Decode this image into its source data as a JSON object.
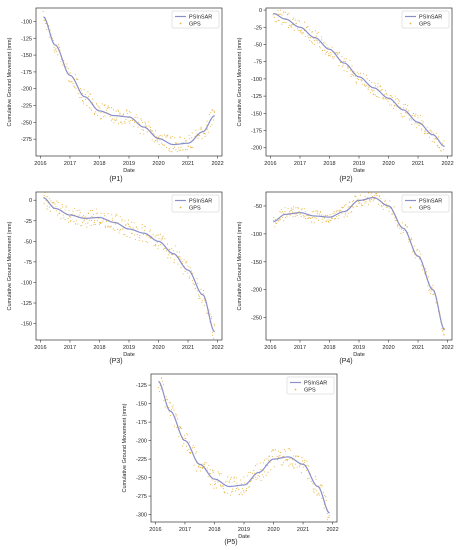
{
  "colors": {
    "psinsar": "#8a8fc8",
    "gps": "#e8b43a",
    "frame": "#333333",
    "text": "#222222"
  },
  "panels": [
    {
      "caption": "(P1)",
      "ylabel": "Cumulative Ground Movement (mm)",
      "xlabel": "Date",
      "legend": [
        "PSInSAR",
        "GPS"
      ],
      "xlim": [
        2015.85,
        2022.15
      ],
      "ylim": [
        -300,
        -80
      ],
      "xticks": [
        2016,
        2017,
        2018,
        2019,
        2020,
        2021,
        2022
      ],
      "xtick_labels": [
        "2016",
        "2017",
        "2018",
        "2019",
        "2020",
        "2021",
        "2022"
      ],
      "yticks": [
        -275,
        -250,
        -225,
        -200,
        -175,
        -150,
        -125,
        -100
      ],
      "ytick_labels": [
        "-275",
        "-250",
        "-225",
        "-200",
        "-175",
        "-150",
        "-125",
        "-100"
      ],
      "curve": [
        [
          2016.1,
          -93
        ],
        [
          2016.5,
          -135
        ],
        [
          2017,
          -180
        ],
        [
          2017.5,
          -212
        ],
        [
          2018,
          -233
        ],
        [
          2018.5,
          -240
        ],
        [
          2019,
          -242
        ],
        [
          2019.5,
          -257
        ],
        [
          2020,
          -274
        ],
        [
          2020.5,
          -283
        ],
        [
          2021,
          -281
        ],
        [
          2021.5,
          -264
        ],
        [
          2021.9,
          -240
        ]
      ],
      "scatter": {
        "spread": 12,
        "count": 280
      }
    },
    {
      "caption": "(P2)",
      "ylabel": "Cumulative Ground Movement (mm)",
      "xlabel": "Date",
      "legend": [
        "PSInSAR",
        "GPS"
      ],
      "xlim": [
        2015.85,
        2022.15
      ],
      "ylim": [
        -212,
        3
      ],
      "xticks": [
        2016,
        2017,
        2018,
        2019,
        2020,
        2021,
        2022
      ],
      "xtick_labels": [
        "2016",
        "2017",
        "2018",
        "2019",
        "2020",
        "2021",
        "2022"
      ],
      "yticks": [
        -200,
        -175,
        -150,
        -125,
        -100,
        -75,
        -50,
        -25,
        0
      ],
      "ytick_labels": [
        "-200",
        "-175",
        "-150",
        "-125",
        "-100",
        "-75",
        "-50",
        "-25",
        "0"
      ],
      "curve": [
        [
          2016.1,
          -5
        ],
        [
          2016.5,
          -13
        ],
        [
          2017,
          -25
        ],
        [
          2017.5,
          -40
        ],
        [
          2018,
          -57
        ],
        [
          2018.5,
          -77
        ],
        [
          2019,
          -97
        ],
        [
          2019.5,
          -113
        ],
        [
          2020,
          -128
        ],
        [
          2020.5,
          -145
        ],
        [
          2021,
          -163
        ],
        [
          2021.5,
          -181
        ],
        [
          2021.9,
          -198
        ]
      ],
      "scatter": {
        "spread": 11,
        "count": 300
      }
    },
    {
      "caption": "(P3)",
      "ylabel": "Cumulative Ground Movement (mm)",
      "xlabel": "Date",
      "legend": [
        "PSInSAR",
        "GPS"
      ],
      "xlim": [
        2015.85,
        2022.15
      ],
      "ylim": [
        -170,
        10
      ],
      "xticks": [
        2016,
        2017,
        2018,
        2019,
        2020,
        2021,
        2022
      ],
      "xtick_labels": [
        "2016",
        "2017",
        "2018",
        "2019",
        "2020",
        "2021",
        "2022"
      ],
      "yticks": [
        -150,
        -125,
        -100,
        -75,
        -50,
        -25,
        0
      ],
      "ytick_labels": [
        "-150",
        "-125",
        "-100",
        "-75",
        "-50",
        "-25",
        "0"
      ],
      "curve": [
        [
          2016.1,
          3
        ],
        [
          2016.5,
          -10
        ],
        [
          2017,
          -18
        ],
        [
          2017.5,
          -22
        ],
        [
          2018,
          -21
        ],
        [
          2018.5,
          -27
        ],
        [
          2019,
          -35
        ],
        [
          2019.5,
          -40
        ],
        [
          2020,
          -50
        ],
        [
          2020.5,
          -65
        ],
        [
          2021,
          -85
        ],
        [
          2021.5,
          -115
        ],
        [
          2021.9,
          -160
        ]
      ],
      "scatter": {
        "spread": 11,
        "count": 290
      }
    },
    {
      "caption": "(P4)",
      "ylabel": "Cumulative Ground Movement (mm)",
      "xlabel": "Date",
      "legend": [
        "PSInSAR",
        "GPS"
      ],
      "xlim": [
        2015.85,
        2022.15
      ],
      "ylim": [
        -290,
        -25
      ],
      "xticks": [
        2016,
        2017,
        2018,
        2019,
        2020,
        2021,
        2022
      ],
      "xtick_labels": [
        "2016",
        "2017",
        "2018",
        "2019",
        "2020",
        "2021",
        "2022"
      ],
      "yticks": [
        -250,
        -200,
        -150,
        -100,
        -50
      ],
      "ytick_labels": [
        "-250",
        "-200",
        "-150",
        "-100",
        "-50"
      ],
      "curve": [
        [
          2016.1,
          -78
        ],
        [
          2016.5,
          -65
        ],
        [
          2017,
          -62
        ],
        [
          2017.5,
          -68
        ],
        [
          2018,
          -70
        ],
        [
          2018.5,
          -60
        ],
        [
          2019,
          -40
        ],
        [
          2019.5,
          -35
        ],
        [
          2020,
          -50
        ],
        [
          2020.5,
          -90
        ],
        [
          2021,
          -140
        ],
        [
          2021.5,
          -200
        ],
        [
          2021.9,
          -272
        ]
      ],
      "scatter": {
        "spread": 12,
        "count": 290
      }
    },
    {
      "caption": "(P5)",
      "ylabel": "Cumulative Ground Movement (mm)",
      "xlabel": "Date",
      "legend": [
        "PSInSAR",
        "GPS"
      ],
      "xlim": [
        2015.85,
        2022.15
      ],
      "ylim": [
        -310,
        -110
      ],
      "xticks": [
        2016,
        2017,
        2018,
        2019,
        2020,
        2021,
        2022
      ],
      "xtick_labels": [
        "2016",
        "2017",
        "2018",
        "2019",
        "2020",
        "2021",
        "2022"
      ],
      "yticks": [
        -300,
        -275,
        -250,
        -225,
        -200,
        -175,
        -150,
        -125
      ],
      "ytick_labels": [
        "-300",
        "-275",
        "-250",
        "-225",
        "-200",
        "-175",
        "-150",
        "-125"
      ],
      "curve": [
        [
          2016.1,
          -120
        ],
        [
          2016.5,
          -160
        ],
        [
          2017,
          -200
        ],
        [
          2017.5,
          -232
        ],
        [
          2018,
          -252
        ],
        [
          2018.5,
          -262
        ],
        [
          2019,
          -260
        ],
        [
          2019.5,
          -243
        ],
        [
          2020,
          -225
        ],
        [
          2020.5,
          -222
        ],
        [
          2021,
          -232
        ],
        [
          2021.5,
          -262
        ],
        [
          2021.9,
          -298
        ]
      ],
      "scatter": {
        "spread": 13,
        "count": 290
      }
    }
  ]
}
